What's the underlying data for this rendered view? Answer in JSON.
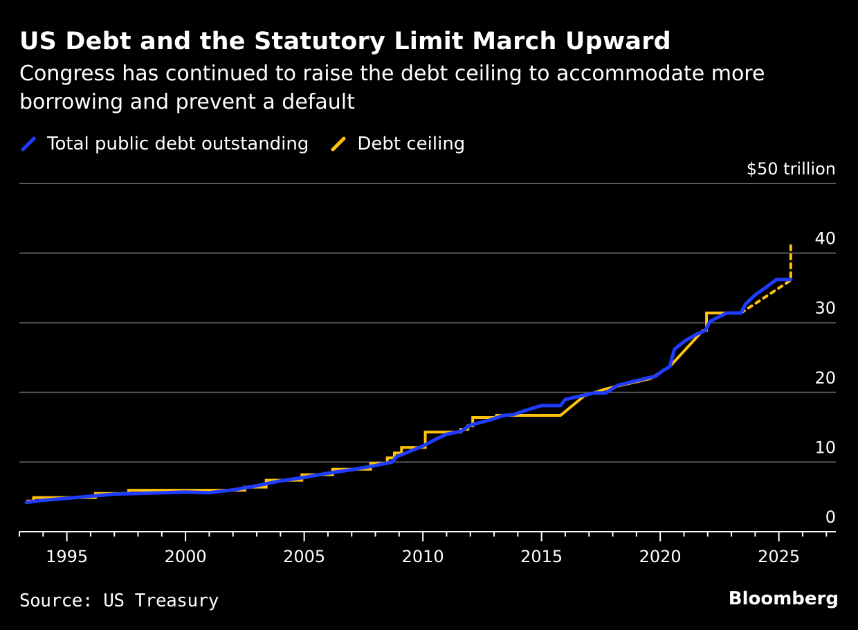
{
  "title": "US Debt and the Statutory Limit March Upward",
  "subtitle": "Congress has continued to raise the debt ceiling to accommodate more borrowing and prevent a default",
  "legend": [
    {
      "label": "Total public debt outstanding",
      "color": "#1f3cff"
    },
    {
      "label": "Debt ceiling",
      "color": "#ffc20e"
    }
  ],
  "source": "Source: US Treasury",
  "brand": "Bloomberg",
  "chart_data": {
    "type": "line",
    "title": "US Debt and the Statutory Limit March Upward",
    "ylabel": "$ trillion",
    "xlim": [
      1993,
      2027.4
    ],
    "ylim": [
      0,
      50
    ],
    "y_ticks": [
      {
        "value": 0,
        "label": "0"
      },
      {
        "value": 10,
        "label": "10"
      },
      {
        "value": 20,
        "label": "20"
      },
      {
        "value": 30,
        "label": "30"
      },
      {
        "value": 40,
        "label": "40"
      },
      {
        "value": 50,
        "label": "$50 trillion"
      }
    ],
    "x_ticks": [
      {
        "value": 1995,
        "label": "1995"
      },
      {
        "value": 2000,
        "label": "2000"
      },
      {
        "value": 2005,
        "label": "2005"
      },
      {
        "value": 2010,
        "label": "2010"
      },
      {
        "value": 2015,
        "label": "2015"
      },
      {
        "value": 2020,
        "label": "2020"
      },
      {
        "value": 2025,
        "label": "2025"
      }
    ],
    "series": [
      {
        "name": "Total public debt outstanding",
        "color": "#1f3cff",
        "points": [
          [
            1993.3,
            4.2
          ],
          [
            1994,
            4.5
          ],
          [
            1995,
            4.8
          ],
          [
            1996,
            5.1
          ],
          [
            1997,
            5.4
          ],
          [
            1998,
            5.5
          ],
          [
            1999,
            5.6
          ],
          [
            2000,
            5.7
          ],
          [
            2001,
            5.6
          ],
          [
            2002,
            6.0
          ],
          [
            2003,
            6.6
          ],
          [
            2004,
            7.3
          ],
          [
            2005,
            7.8
          ],
          [
            2006,
            8.4
          ],
          [
            2007,
            8.9
          ],
          [
            2008,
            9.5
          ],
          [
            2008.7,
            10.0
          ],
          [
            2008.9,
            10.8
          ],
          [
            2009.5,
            11.6
          ],
          [
            2010,
            12.3
          ],
          [
            2010.5,
            13.2
          ],
          [
            2011,
            14.0
          ],
          [
            2011.6,
            14.4
          ],
          [
            2012,
            15.3
          ],
          [
            2012.8,
            16.0
          ],
          [
            2013.4,
            16.7
          ],
          [
            2013.8,
            16.8
          ],
          [
            2014.5,
            17.6
          ],
          [
            2015,
            18.1
          ],
          [
            2015.8,
            18.1
          ],
          [
            2016,
            19.0
          ],
          [
            2016.8,
            19.6
          ],
          [
            2017.2,
            19.9
          ],
          [
            2017.7,
            19.9
          ],
          [
            2018.2,
            21.0
          ],
          [
            2018.9,
            21.6
          ],
          [
            2019.5,
            22.1
          ],
          [
            2019.8,
            22.3
          ],
          [
            2020.1,
            23.1
          ],
          [
            2020.4,
            23.7
          ],
          [
            2020.6,
            26.2
          ],
          [
            2021,
            27.3
          ],
          [
            2021.5,
            28.3
          ],
          [
            2021.9,
            28.9
          ],
          [
            2022.1,
            30.2
          ],
          [
            2022.5,
            30.9
          ],
          [
            2022.8,
            31.4
          ],
          [
            2023.4,
            31.4
          ],
          [
            2023.6,
            32.7
          ],
          [
            2024,
            34.0
          ],
          [
            2024.5,
            35.2
          ],
          [
            2024.9,
            36.2
          ],
          [
            2025.5,
            36.2
          ]
        ]
      },
      {
        "name": "Debt ceiling",
        "color": "#ffc20e",
        "points": [
          [
            1993.3,
            4.4
          ],
          [
            1993.6,
            4.4
          ],
          [
            1993.6,
            4.9
          ],
          [
            1996.2,
            4.9
          ],
          [
            1996.2,
            5.5
          ],
          [
            1997.6,
            5.5
          ],
          [
            1997.6,
            5.95
          ],
          [
            2002.5,
            5.95
          ],
          [
            2002.5,
            6.4
          ],
          [
            2003.4,
            6.4
          ],
          [
            2003.4,
            7.4
          ],
          [
            2004.9,
            7.4
          ],
          [
            2004.9,
            8.18
          ],
          [
            2006.2,
            8.18
          ],
          [
            2006.2,
            8.97
          ],
          [
            2007.8,
            8.97
          ],
          [
            2007.8,
            9.82
          ],
          [
            2008.5,
            9.82
          ],
          [
            2008.5,
            10.6
          ],
          [
            2008.8,
            10.6
          ],
          [
            2008.8,
            11.3
          ],
          [
            2009.1,
            11.3
          ],
          [
            2009.1,
            12.1
          ],
          [
            2010.1,
            12.1
          ],
          [
            2010.1,
            14.3
          ],
          [
            2011.6,
            14.3
          ],
          [
            2011.6,
            14.7
          ],
          [
            2011.9,
            14.7
          ],
          [
            2011.9,
            15.2
          ],
          [
            2012.1,
            15.2
          ],
          [
            2012.1,
            16.4
          ],
          [
            2013.1,
            16.4
          ],
          [
            2013.1,
            16.7
          ],
          [
            2015.8,
            16.7
          ],
          [
            2016.8,
            19.5
          ],
          [
            2017.7,
            20.5
          ],
          [
            2019.6,
            22.0
          ],
          [
            2020.4,
            23.7
          ],
          [
            2021.8,
            28.9
          ],
          [
            2021.95,
            28.9
          ],
          [
            2021.95,
            31.4
          ],
          [
            2023.4,
            31.4
          ],
          [
            2025.5,
            36.1
          ],
          [
            2025.5,
            41.1
          ]
        ],
        "solid_until": 2023.4
      }
    ]
  }
}
